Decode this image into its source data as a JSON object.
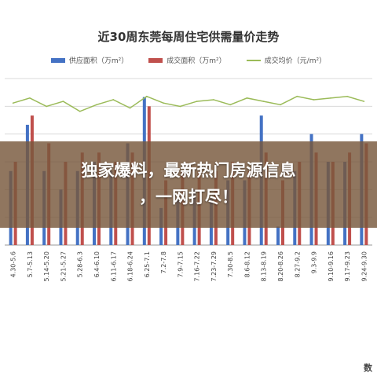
{
  "banner": {
    "line1": "独家爆料，最新热门房源信息",
    "line2": "，一网打尽！"
  },
  "corner_logo": "数",
  "colors": {
    "supply": "#4472C4",
    "deal": "#C0504D",
    "price": "#9BBB59",
    "banner": "#78583C"
  },
  "chart_data": {
    "type": "bar",
    "title": "近30周东莞每周住宅供需量价走势",
    "legend_position": "top",
    "grid": true,
    "categories": [
      "4.30-5.6",
      "5.7-5.13",
      "5.14-5.20",
      "5.21-5.27",
      "5.28-6.3",
      "6.4-6.10",
      "6.11-6.17",
      "6.18-6.24",
      "6.25-7.1",
      "7.2-7.8",
      "7.9-7.15",
      "7.16-7.22",
      "7.23-7.29",
      "7.30-8.5",
      "8.6-8.12",
      "8.13-8.19",
      "8.20-8.26",
      "8.27-9.2",
      "9.3-9.9",
      "9.10-9.16",
      "9.17-9.23",
      "9.24-9.30"
    ],
    "series": [
      {
        "name": "供应面积（万m²）",
        "kind": "bar",
        "values": [
          8,
          13,
          8,
          6,
          8,
          9,
          8,
          11,
          16,
          4,
          5,
          6,
          5,
          7,
          7,
          14,
          2,
          8,
          12,
          9,
          9,
          12
        ]
      },
      {
        "name": "成交面积（万m²）",
        "kind": "bar",
        "values": [
          9,
          14,
          11,
          9,
          10,
          10,
          9,
          10,
          15,
          7,
          8,
          8,
          8,
          9,
          8,
          10,
          7,
          9,
          10,
          9,
          10,
          11
        ]
      },
      {
        "name": "成交均价（元/m²）",
        "kind": "line",
        "values": [
          21500,
          21800,
          21300,
          21600,
          21000,
          21400,
          21700,
          21200,
          21900,
          21500,
          21300,
          21600,
          21700,
          21400,
          21800,
          21600,
          21400,
          21900,
          21700,
          21800,
          21900,
          21600
        ]
      }
    ]
  }
}
